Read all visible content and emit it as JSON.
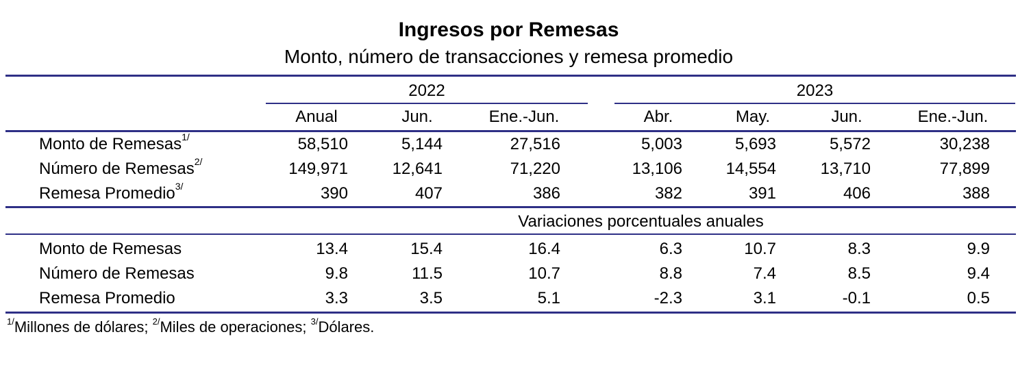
{
  "title": "Ingresos por Remesas",
  "subtitle": "Monto, número de transacciones y remesa promedio",
  "years": [
    "2022",
    "2023"
  ],
  "columns": [
    "Anual",
    "Jun.",
    "Ene.-Jun.",
    "Abr.",
    "May.",
    "Jun.",
    "Ene.-Jun."
  ],
  "section1": {
    "rows": [
      {
        "label": "Monto de Remesas",
        "sup": "1/",
        "values": [
          "58,510",
          "5,144",
          "27,516",
          "5,003",
          "5,693",
          "5,572",
          "30,238"
        ]
      },
      {
        "label": "Número de Remesas",
        "sup": "2/",
        "values": [
          "149,971",
          "12,641",
          "71,220",
          "13,106",
          "14,554",
          "13,710",
          "77,899"
        ]
      },
      {
        "label": "Remesa Promedio",
        "sup": "3/",
        "values": [
          "390",
          "407",
          "386",
          "382",
          "391",
          "406",
          "388"
        ]
      }
    ]
  },
  "section2": {
    "header": "Variaciones porcentuales anuales",
    "rows": [
      {
        "label": "Monto de Remesas",
        "values": [
          "13.4",
          "15.4",
          "16.4",
          "6.3",
          "10.7",
          "8.3",
          "9.9"
        ]
      },
      {
        "label": "Número de Remesas",
        "values": [
          "9.8",
          "11.5",
          "10.7",
          "8.8",
          "7.4",
          "8.5",
          "9.4"
        ]
      },
      {
        "label": "Remesa Promedio",
        "values": [
          "3.3",
          "3.5",
          "5.1",
          "-2.3",
          "3.1",
          "-0.1",
          "0.5"
        ]
      }
    ]
  },
  "footnote": {
    "sup1": "1/",
    "text1": "Millones de dólares; ",
    "sup2": "2/",
    "text2": "Miles de operaciones; ",
    "sup3": "3/",
    "text3": "Dólares."
  },
  "colors": {
    "rule": "#2e2f86",
    "text": "#000000"
  }
}
